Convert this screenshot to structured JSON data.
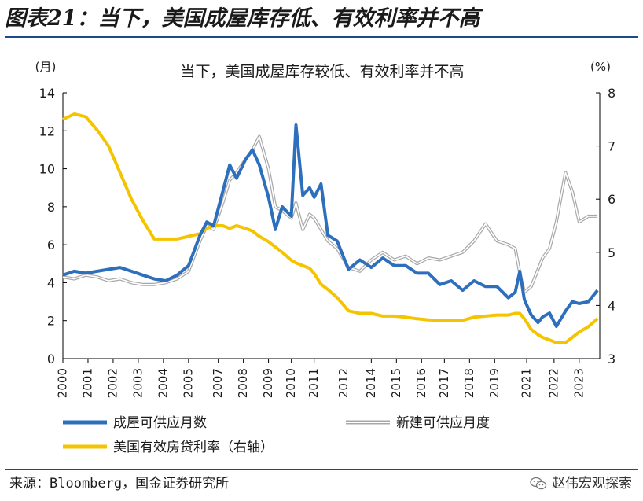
{
  "figure_title": "图表21：当下，美国成屋库存低、有效利率并不高",
  "source": "来源：Bloomberg，国金证券研究所",
  "watermark": "赵伟宏观探索",
  "watermark_icon": "wechat-icon",
  "colors": {
    "existing": "#2e6fbd",
    "new": "#a8a8a8",
    "rate": "#f5c400",
    "axis": "#000000",
    "rule": "#1a4a8a"
  },
  "chart_data": {
    "type": "line",
    "title": "当下，美国成屋库存较低、有效利率并不高",
    "ylabel_left": "(月)",
    "ylabel_right": "(%)",
    "ylim_left": [
      0,
      14
    ],
    "ylim_right": [
      3,
      8
    ],
    "yticks_left": [
      "0",
      "2",
      "4",
      "6",
      "8",
      "10",
      "12",
      "14"
    ],
    "yticks_right": [
      "3",
      "4",
      "5",
      "6",
      "7",
      "8"
    ],
    "xlim": [
      2000,
      2023.5
    ],
    "x_tick_labels": [
      "2000",
      "2001",
      "2002",
      "2003",
      "2004",
      "2005",
      "2007",
      "2008",
      "2009",
      "2010",
      "2011",
      "2012",
      "2014",
      "2015",
      "2016",
      "2017",
      "2018",
      "2019",
      "2021",
      "2022",
      "2023"
    ],
    "x_tick_positions": [
      2000,
      2001.1,
      2002.2,
      2003.3,
      2004.4,
      2005.5,
      2006.8,
      2007.9,
      2009.0,
      2010.0,
      2011.0,
      2012.3,
      2013.5,
      2014.6,
      2015.7,
      2016.7,
      2017.8,
      2018.9,
      2020.3,
      2021.5,
      2022.6
    ],
    "x": [
      2000,
      2000.5,
      2001,
      2001.5,
      2002,
      2002.5,
      2003,
      2003.5,
      2004,
      2004.5,
      2005,
      2005.5,
      2006,
      2006.3,
      2006.6,
      2007,
      2007.3,
      2007.6,
      2008,
      2008.3,
      2008.6,
      2009,
      2009.3,
      2009.6,
      2010,
      2010.2,
      2010.5,
      2010.8,
      2011,
      2011.3,
      2011.6,
      2012,
      2012.5,
      2013,
      2013.5,
      2014,
      2014.5,
      2015,
      2015.5,
      2016,
      2016.5,
      2017,
      2017.5,
      2018,
      2018.5,
      2019,
      2019.5,
      2019.8,
      2020,
      2020.2,
      2020.5,
      2020.8,
      2021,
      2021.3,
      2021.6,
      2022,
      2022.3,
      2022.6,
      2023,
      2023.4
    ],
    "series": [
      {
        "name": "成屋可供应月数",
        "axis": "left",
        "values": [
          4.4,
          4.6,
          4.5,
          4.6,
          4.7,
          4.8,
          4.6,
          4.4,
          4.2,
          4.1,
          4.4,
          4.9,
          6.5,
          7.2,
          7.0,
          8.8,
          10.2,
          9.5,
          10.5,
          11.0,
          10.2,
          8.5,
          6.8,
          8.0,
          7.5,
          12.3,
          8.6,
          9.0,
          8.5,
          9.2,
          6.5,
          6.2,
          4.7,
          5.2,
          4.8,
          5.3,
          4.9,
          4.9,
          4.5,
          4.5,
          3.9,
          4.1,
          3.6,
          4.1,
          3.8,
          3.8,
          3.2,
          3.5,
          4.6,
          3.1,
          2.3,
          1.9,
          2.2,
          2.4,
          1.7,
          2.5,
          3.0,
          2.9,
          3.0,
          3.6
        ]
      },
      {
        "name": "新建可供应月度",
        "axis": "left",
        "values": [
          4.3,
          4.2,
          4.4,
          4.3,
          4.1,
          4.2,
          4.0,
          3.9,
          3.9,
          4.0,
          4.2,
          4.6,
          6.2,
          7.0,
          6.8,
          8.2,
          9.4,
          9.8,
          10.5,
          11.0,
          11.7,
          10.0,
          8.0,
          7.8,
          7.4,
          8.2,
          6.8,
          7.6,
          7.4,
          6.8,
          6.2,
          5.8,
          4.8,
          4.6,
          5.2,
          5.6,
          5.2,
          5.4,
          5.0,
          5.3,
          5.2,
          5.4,
          5.6,
          6.2,
          7.1,
          6.2,
          6.0,
          5.8,
          4.5,
          3.5,
          3.8,
          4.7,
          5.3,
          5.8,
          7.2,
          9.8,
          8.8,
          7.2,
          7.5,
          7.5
        ]
      },
      {
        "name": "美国有效房贷利率（右轴）",
        "axis": "right",
        "values": [
          7.5,
          7.6,
          7.55,
          7.3,
          7.0,
          6.5,
          6.0,
          5.6,
          5.25,
          5.25,
          5.25,
          5.3,
          5.35,
          5.45,
          5.5,
          5.5,
          5.45,
          5.5,
          5.45,
          5.4,
          5.3,
          5.2,
          5.1,
          5.0,
          4.85,
          4.8,
          4.75,
          4.7,
          4.6,
          4.4,
          4.3,
          4.15,
          3.9,
          3.85,
          3.85,
          3.8,
          3.8,
          3.78,
          3.75,
          3.73,
          3.72,
          3.72,
          3.72,
          3.78,
          3.8,
          3.82,
          3.82,
          3.85,
          3.85,
          3.75,
          3.55,
          3.45,
          3.4,
          3.35,
          3.3,
          3.3,
          3.4,
          3.5,
          3.6,
          3.75
        ]
      }
    ],
    "legend": [
      {
        "label": "成屋可供应月数",
        "series": 0,
        "style": "thick-blue"
      },
      {
        "label": "新建可供应月度",
        "series": 1,
        "style": "double-grey"
      },
      {
        "label": "美国有效房贷利率（右轴）",
        "series": 2,
        "style": "thick-yellow"
      }
    ],
    "legend_position": "bottom"
  }
}
